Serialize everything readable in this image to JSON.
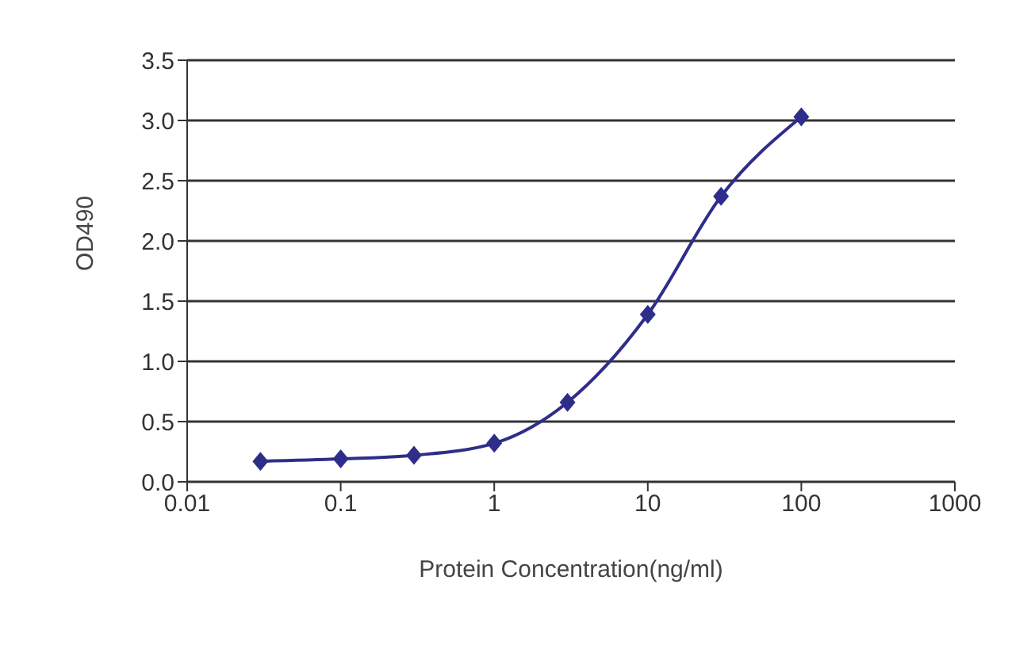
{
  "chart_data": {
    "type": "line",
    "xlabel": "Protein Concentration(ng/ml)",
    "ylabel": "OD490",
    "log": "x",
    "x": [
      0.03,
      0.1,
      0.3,
      1,
      3,
      10,
      30,
      100
    ],
    "series": [
      {
        "color": "#2e2e8a",
        "values": [
          0.17,
          0.19,
          0.22,
          0.32,
          0.66,
          1.39,
          2.37,
          3.03
        ]
      }
    ],
    "xlim": [
      0.01,
      1000
    ],
    "xticks": [
      0.01,
      0.1,
      1,
      10,
      100,
      1000
    ],
    "ylim": [
      0,
      3.5
    ],
    "yticks": [
      {
        "value": 0,
        "label": "0.0"
      },
      0.5,
      {
        "value": 1,
        "label": "1.0"
      },
      1.5,
      {
        "value": 2,
        "label": "2.0"
      },
      2.5,
      {
        "value": 3,
        "label": "3.0"
      },
      3.5
    ],
    "grid": "y",
    "marker": "diamond",
    "line_style": "solid",
    "legend": false
  }
}
